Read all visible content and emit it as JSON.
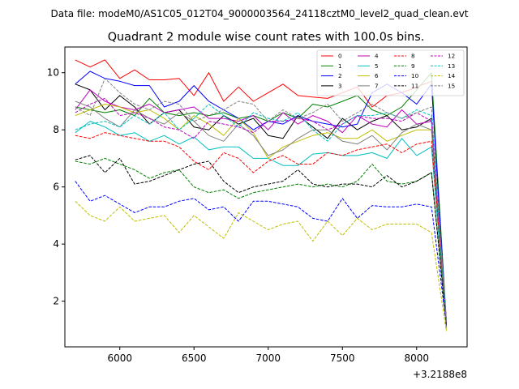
{
  "suptitle": "Data file: modeM0/AS1C05_012T04_9000003564_24118cztM0_level2_quad_clean.evt",
  "chart_data": {
    "type": "line",
    "title": "Quadrant 2 module wise count rates with 100.0s bins.",
    "xlabel": "",
    "ylabel": "",
    "x_offset_label": "+3.2188e8",
    "xlim": [
      5630,
      8340
    ],
    "ylim": [
      0.4,
      10.9
    ],
    "xticks": [
      6000,
      6500,
      7000,
      7500,
      8000
    ],
    "yticks": [
      2,
      4,
      6,
      8,
      10
    ],
    "grid": false,
    "legend_placement": "top-right",
    "x": [
      5700,
      5800,
      5900,
      6000,
      6100,
      6200,
      6300,
      6400,
      6500,
      6600,
      6700,
      6800,
      6900,
      7000,
      7100,
      7200,
      7300,
      7400,
      7500,
      7600,
      7700,
      7800,
      7900,
      8000,
      8100,
      8200
    ],
    "series": [
      {
        "name": "0",
        "color": "#ff0000",
        "dash": "solid",
        "values": [
          10.45,
          10.2,
          10.45,
          9.8,
          10.1,
          9.75,
          9.75,
          9.8,
          9.2,
          10.0,
          9.0,
          9.5,
          9.0,
          9.3,
          9.6,
          9.2,
          9.15,
          9.1,
          9.3,
          9.5,
          8.8,
          9.2,
          9.3,
          9.5,
          9.7,
          1.3
        ]
      },
      {
        "name": "1",
        "color": "#008000",
        "dash": "solid",
        "values": [
          8.8,
          8.7,
          8.6,
          8.7,
          8.5,
          9.1,
          8.6,
          8.5,
          8.6,
          8.5,
          8.6,
          8.4,
          8.5,
          8.3,
          8.6,
          8.4,
          8.9,
          8.8,
          9.0,
          9.2,
          8.7,
          8.5,
          8.8,
          9.4,
          10.0,
          1.25
        ]
      },
      {
        "name": "2",
        "color": "#0000ff",
        "dash": "solid",
        "values": [
          9.6,
          10.05,
          9.8,
          9.7,
          9.55,
          9.55,
          8.8,
          9.0,
          9.55,
          9.0,
          8.7,
          8.4,
          8.0,
          8.3,
          8.2,
          8.5,
          8.3,
          8.2,
          8.1,
          8.2,
          9.3,
          9.6,
          9.3,
          8.9,
          9.6,
          1.2
        ]
      },
      {
        "name": "3",
        "color": "#000000",
        "dash": "solid",
        "values": [
          9.6,
          9.4,
          8.7,
          9.2,
          8.8,
          8.2,
          8.6,
          8.7,
          8.1,
          8.0,
          8.5,
          8.2,
          8.4,
          7.8,
          7.7,
          8.5,
          8.1,
          7.7,
          8.4,
          8.0,
          8.3,
          8.5,
          8.0,
          8.1,
          8.4,
          1.15
        ]
      },
      {
        "name": "4",
        "color": "#bf00bf",
        "dash": "solid",
        "values": [
          8.7,
          9.4,
          9.0,
          8.8,
          8.7,
          8.9,
          8.6,
          8.7,
          8.8,
          8.4,
          8.4,
          8.3,
          8.5,
          8.0,
          8.6,
          8.2,
          8.5,
          8.3,
          7.9,
          8.5,
          8.2,
          8.1,
          8.7,
          8.2,
          8.3,
          1.1
        ]
      },
      {
        "name": "5",
        "color": "#00bfbf",
        "dash": "solid",
        "values": [
          7.9,
          8.3,
          8.1,
          7.8,
          7.9,
          7.6,
          7.8,
          7.5,
          7.75,
          7.3,
          7.4,
          7.4,
          7.0,
          7.0,
          6.75,
          6.75,
          7.15,
          7.2,
          7.1,
          7.1,
          7.2,
          7.0,
          7.7,
          7.1,
          7.4,
          1.05
        ]
      },
      {
        "name": "6",
        "color": "#bfbf00",
        "dash": "solid",
        "values": [
          8.5,
          8.7,
          8.9,
          8.8,
          8.6,
          8.7,
          8.4,
          8.0,
          8.5,
          8.2,
          7.8,
          8.4,
          7.9,
          7.0,
          7.4,
          7.6,
          7.8,
          7.9,
          7.7,
          7.7,
          8.0,
          7.6,
          7.8,
          8.0,
          8.0,
          1.0
        ]
      },
      {
        "name": "7",
        "color": "#808080",
        "dash": "solid",
        "values": [
          9.0,
          8.8,
          8.4,
          8.1,
          8.7,
          8.4,
          8.2,
          8.6,
          8.3,
          7.8,
          7.6,
          8.2,
          7.8,
          7.1,
          7.3,
          7.7,
          8.0,
          8.0,
          7.6,
          7.5,
          7.8,
          7.3,
          7.9,
          8.2,
          8.0,
          1.1
        ]
      },
      {
        "name": "8",
        "color": "#ff0000",
        "dash": "dashed",
        "values": [
          7.8,
          7.7,
          7.9,
          7.8,
          7.7,
          7.6,
          7.6,
          7.4,
          6.9,
          6.6,
          7.2,
          7.0,
          6.5,
          6.9,
          7.1,
          6.8,
          6.8,
          7.2,
          7.1,
          7.3,
          7.4,
          7.5,
          7.2,
          7.5,
          7.6,
          1.4
        ]
      },
      {
        "name": "9",
        "color": "#008000",
        "dash": "dashed",
        "values": [
          6.9,
          6.8,
          7.0,
          6.8,
          6.6,
          6.3,
          6.5,
          6.6,
          6.0,
          5.8,
          5.9,
          5.6,
          5.8,
          5.9,
          6.0,
          6.1,
          6.0,
          6.1,
          6.0,
          6.2,
          6.8,
          6.2,
          6.1,
          6.2,
          6.5,
          1.3
        ]
      },
      {
        "name": "10",
        "color": "#0000ff",
        "dash": "dashed",
        "values": [
          6.2,
          5.5,
          5.7,
          5.4,
          5.1,
          5.3,
          5.3,
          5.5,
          5.6,
          5.2,
          5.3,
          4.8,
          5.5,
          5.5,
          5.4,
          5.3,
          4.9,
          4.8,
          5.6,
          4.9,
          5.35,
          5.3,
          5.3,
          5.4,
          5.3,
          1.2
        ]
      },
      {
        "name": "11",
        "color": "#000000",
        "dash": "dashed",
        "values": [
          6.95,
          7.1,
          6.5,
          7.0,
          6.1,
          6.2,
          6.4,
          6.6,
          6.8,
          6.9,
          6.2,
          5.8,
          6.0,
          6.1,
          6.2,
          6.6,
          6.1,
          6.0,
          6.1,
          6.1,
          6.0,
          6.4,
          6.0,
          6.2,
          6.5,
          1.15
        ]
      },
      {
        "name": "12",
        "color": "#bf00bf",
        "dash": "dashed",
        "values": [
          8.6,
          8.9,
          9.1,
          8.5,
          8.6,
          8.4,
          8.1,
          8.0,
          7.7,
          8.3,
          8.2,
          8.1,
          7.9,
          8.3,
          8.3,
          8.4,
          8.3,
          8.0,
          8.2,
          8.5,
          8.4,
          8.4,
          8.3,
          8.6,
          8.3,
          1.25
        ]
      },
      {
        "name": "13",
        "color": "#00bfbf",
        "dash": "dashed",
        "values": [
          8.0,
          8.2,
          8.3,
          8.1,
          8.5,
          8.2,
          8.6,
          8.0,
          8.4,
          8.9,
          8.5,
          8.1,
          8.6,
          8.4,
          8.3,
          8.6,
          8.0,
          7.6,
          8.2,
          8.5,
          8.5,
          8.6,
          8.4,
          8.7,
          8.5,
          1.3
        ]
      },
      {
        "name": "14",
        "color": "#bfbf00",
        "dash": "dashed",
        "values": [
          5.5,
          5.0,
          4.8,
          5.3,
          4.8,
          4.9,
          5.0,
          4.4,
          5.0,
          4.6,
          4.2,
          5.1,
          4.8,
          4.5,
          4.7,
          4.8,
          4.1,
          4.8,
          4.3,
          4.9,
          4.5,
          4.7,
          4.7,
          4.7,
          4.4,
          0.95
        ]
      },
      {
        "name": "15",
        "color": "#808080",
        "dash": "dashed",
        "values": [
          8.8,
          8.5,
          9.8,
          9.3,
          8.9,
          8.7,
          9.0,
          8.9,
          8.3,
          8.5,
          8.7,
          9.0,
          8.9,
          8.3,
          8.7,
          8.4,
          8.6,
          8.9,
          8.3,
          8.6,
          8.9,
          8.6,
          8.4,
          8.6,
          8.8,
          1.2
        ]
      }
    ]
  }
}
